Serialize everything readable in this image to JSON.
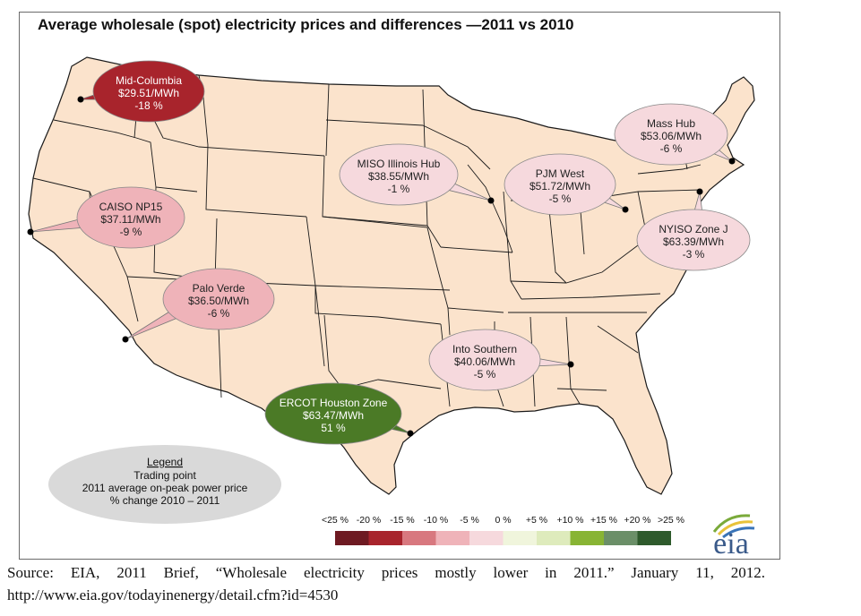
{
  "title": "Average wholesale (spot) electricity prices and differences —2011 vs 2010",
  "hubs": [
    {
      "name": "Mid-Columbia",
      "price": "$29.51/MWh",
      "change": "-18 %",
      "pct": -18,
      "color": "#a8242c",
      "text_color": "#ffffff"
    },
    {
      "name": "CAISO NP15",
      "price": "$37.11/MWh",
      "change": "-9 %",
      "pct": -9,
      "color": "#efb3b9",
      "text_color": "#222222"
    },
    {
      "name": "Palo Verde",
      "price": "$36.50/MWh",
      "change": "-6 %",
      "pct": -6,
      "color": "#efb3b9",
      "text_color": "#222222"
    },
    {
      "name": "MISO Illinois Hub",
      "price": "$38.55/MWh",
      "change": "-1 %",
      "pct": -1,
      "color": "#f6d9dd",
      "text_color": "#222222"
    },
    {
      "name": "PJM West",
      "price": "$51.72/MWh",
      "change": "-5 %",
      "pct": -5,
      "color": "#f6d9dd",
      "text_color": "#222222"
    },
    {
      "name": "Mass Hub",
      "price": "$53.06/MWh",
      "change": "-6 %",
      "pct": -6,
      "color": "#f6d9dd",
      "text_color": "#222222"
    },
    {
      "name": "NYISO Zone J",
      "price": "$63.39/MWh",
      "change": "-3 %",
      "pct": -3,
      "color": "#f6d9dd",
      "text_color": "#222222"
    },
    {
      "name": "Into Southern",
      "price": "$40.06/MWh",
      "change": "-5 %",
      "pct": -5,
      "color": "#f6d9dd",
      "text_color": "#222222"
    },
    {
      "name": "ERCOT Houston Zone",
      "price": "$63.47/MWh",
      "change": "51 %",
      "pct": 51,
      "color": "#4b7a26",
      "text_color": "#ffffff"
    }
  ],
  "legend": {
    "heading": "Legend",
    "line1": "Trading point",
    "line2": "2011 average on-peak power price",
    "line3": "% change 2010 – 2011"
  },
  "color_scale": {
    "labels": [
      "<25 %",
      "-20 %",
      "-15 %",
      "-10 %",
      "-5 %",
      "0 %",
      "+5 %",
      "+10 %",
      "+15 %",
      "+20 %",
      ">25 %"
    ],
    "colors": [
      "#6e1a22",
      "#a8242c",
      "#d8787f",
      "#efb3b9",
      "#f6d9dd",
      "#f0f5dc",
      "#deebbc",
      "#88b434",
      "#6b8f68",
      "#2e5a2c"
    ]
  },
  "logo_text": "eia",
  "source": {
    "line1": "Source:  EIA,  2011  Brief,  “Wholesale  electricity  prices  mostly  lower  in  2011.”  January  11,  2012.",
    "line2": "http://www.eia.gov/todayinenergy/detail.cfm?id=4530"
  },
  "colors": {
    "land": "#fbe3cc",
    "border": "#1a1a1a",
    "legend_bubble": "#d9d9d9"
  }
}
